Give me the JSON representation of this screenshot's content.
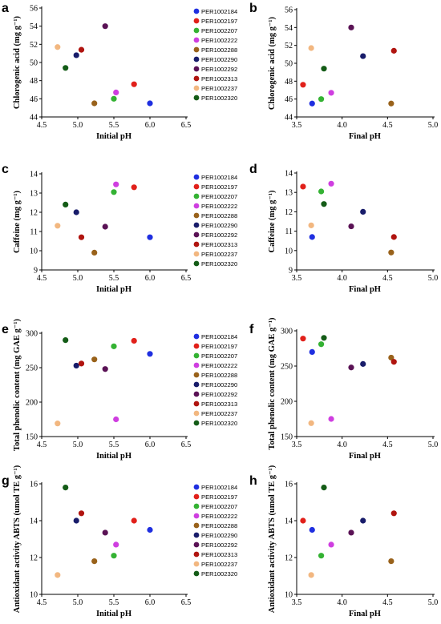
{
  "series_names": [
    "PER1002184",
    "PER1002197",
    "PER1002207",
    "PER1002222",
    "PER1002288",
    "PER1002290",
    "PER1002292",
    "PER1002313",
    "PER1002237",
    "PER1002320"
  ],
  "series_colors": [
    "#1f2fe0",
    "#e1201a",
    "#34b233",
    "#cf3ee0",
    "#99621b",
    "#181c6a",
    "#5a1255",
    "#b0140f",
    "#f2b780",
    "#145c17"
  ],
  "chart_data": [
    {
      "panel": "a",
      "type": "scatter",
      "xlabel": "Initial pH",
      "ylabel": "Chlorogenic acid (mg g⁻¹)",
      "xlim": [
        4.5,
        6.5
      ],
      "ylim": [
        44,
        56
      ],
      "xticks": [
        "4.5",
        "5.0",
        "5.5",
        "6.0",
        "6.5"
      ],
      "yticks": [
        "44",
        "46",
        "48",
        "50",
        "52",
        "54",
        "56"
      ],
      "legend": true,
      "points": [
        [
          6.0,
          45.5
        ],
        [
          5.78,
          47.6
        ],
        [
          5.5,
          46.0
        ],
        [
          5.53,
          46.7
        ],
        [
          5.23,
          45.5
        ],
        [
          4.98,
          50.8
        ],
        [
          5.38,
          54.0
        ],
        [
          5.05,
          51.4
        ],
        [
          4.72,
          51.7
        ],
        [
          4.83,
          49.4
        ]
      ]
    },
    {
      "panel": "b",
      "type": "scatter",
      "xlabel": "Final pH",
      "ylabel": "Chlorogenic acid (mg g⁻¹)",
      "xlim": [
        3.5,
        5.0
      ],
      "ylim": [
        44,
        56
      ],
      "xticks": [
        "3.5",
        "4.0",
        "4.5",
        "5.0"
      ],
      "yticks": [
        "44",
        "46",
        "48",
        "50",
        "52",
        "54",
        "56"
      ],
      "legend": false,
      "points": [
        [
          3.67,
          45.5
        ],
        [
          3.57,
          47.6
        ],
        [
          3.77,
          46.0
        ],
        [
          3.88,
          46.7
        ],
        [
          4.54,
          45.5
        ],
        [
          4.23,
          50.8
        ],
        [
          4.1,
          54.0
        ],
        [
          4.57,
          51.4
        ],
        [
          3.66,
          51.7
        ],
        [
          3.8,
          49.4
        ]
      ]
    },
    {
      "panel": "c",
      "type": "scatter",
      "xlabel": "Initial pH",
      "ylabel": "Caffeine (mg g⁻¹)",
      "xlim": [
        4.5,
        6.5
      ],
      "ylim": [
        9,
        14
      ],
      "xticks": [
        "4.5",
        "5.0",
        "5.5",
        "6.0",
        "6.5"
      ],
      "yticks": [
        "9",
        "10",
        "11",
        "12",
        "13",
        "14"
      ],
      "legend": true,
      "points": [
        [
          6.0,
          10.7
        ],
        [
          5.78,
          13.3
        ],
        [
          5.5,
          13.05
        ],
        [
          5.53,
          13.45
        ],
        [
          5.23,
          9.9
        ],
        [
          4.98,
          12.0
        ],
        [
          5.38,
          11.25
        ],
        [
          5.05,
          10.7
        ],
        [
          4.72,
          11.3
        ],
        [
          4.83,
          12.4
        ]
      ]
    },
    {
      "panel": "d",
      "type": "scatter",
      "xlabel": "Final pH",
      "ylabel": "Caffeine (mg g⁻¹)",
      "xlim": [
        3.5,
        5.0
      ],
      "ylim": [
        9,
        14
      ],
      "xticks": [
        "3.5",
        "4.0",
        "4.5",
        "5.0"
      ],
      "yticks": [
        "9",
        "10",
        "11",
        "12",
        "13",
        "14"
      ],
      "legend": false,
      "points": [
        [
          3.67,
          10.7
        ],
        [
          3.57,
          13.3
        ],
        [
          3.77,
          13.05
        ],
        [
          3.88,
          13.45
        ],
        [
          4.54,
          9.9
        ],
        [
          4.23,
          12.0
        ],
        [
          4.1,
          11.25
        ],
        [
          4.57,
          10.7
        ],
        [
          3.66,
          11.3
        ],
        [
          3.8,
          12.4
        ]
      ]
    },
    {
      "panel": "e",
      "type": "scatter",
      "xlabel": "Initial pH",
      "ylabel": "Total phenolic content (mg GAE g⁻¹)",
      "xlim": [
        4.5,
        6.5
      ],
      "ylim": [
        150,
        300
      ],
      "xticks": [
        "4.5",
        "5.0",
        "5.5",
        "6.0",
        "6.5"
      ],
      "yticks": [
        "150",
        "200",
        "250",
        "300"
      ],
      "legend": true,
      "points": [
        [
          6.0,
          270
        ],
        [
          5.78,
          289
        ],
        [
          5.5,
          281
        ],
        [
          5.53,
          175
        ],
        [
          5.23,
          262
        ],
        [
          4.98,
          253
        ],
        [
          5.38,
          248
        ],
        [
          5.05,
          256
        ],
        [
          4.72,
          169
        ],
        [
          4.83,
          290
        ]
      ]
    },
    {
      "panel": "f",
      "type": "scatter",
      "xlabel": "Final pH",
      "ylabel": "Total phenolic content (mg GAE g⁻¹)",
      "xlim": [
        3.5,
        5.0
      ],
      "ylim": [
        150,
        300
      ],
      "xticks": [
        "3.5",
        "4.0",
        "4.5",
        "5.0"
      ],
      "yticks": [
        "150",
        "200",
        "250",
        "300"
      ],
      "legend": false,
      "points": [
        [
          3.67,
          270
        ],
        [
          3.57,
          289
        ],
        [
          3.77,
          281
        ],
        [
          3.88,
          175
        ],
        [
          4.54,
          262
        ],
        [
          4.23,
          253
        ],
        [
          4.1,
          248
        ],
        [
          4.57,
          256
        ],
        [
          3.66,
          169
        ],
        [
          3.8,
          290
        ]
      ]
    },
    {
      "panel": "g",
      "type": "scatter",
      "xlabel": "Initial pH",
      "ylabel": "Antioxidant activity ABTS (umol TE g⁻¹)",
      "xlim": [
        4.5,
        6.5
      ],
      "ylim": [
        10,
        16
      ],
      "xticks": [
        "4.5",
        "5.0",
        "5.5",
        "6.0",
        "6.5"
      ],
      "yticks": [
        "10",
        "12",
        "14",
        "16"
      ],
      "legend": true,
      "points": [
        [
          6.0,
          13.5
        ],
        [
          5.78,
          14.0
        ],
        [
          5.5,
          12.1
        ],
        [
          5.53,
          12.7
        ],
        [
          5.23,
          11.8
        ],
        [
          4.98,
          14.0
        ],
        [
          5.38,
          13.35
        ],
        [
          5.05,
          14.4
        ],
        [
          4.72,
          11.05
        ],
        [
          4.83,
          15.8
        ]
      ]
    },
    {
      "panel": "h",
      "type": "scatter",
      "xlabel": "Final pH",
      "ylabel": "Antioxidant activity ABTS (umol TE g⁻¹)",
      "xlim": [
        3.5,
        5.0
      ],
      "ylim": [
        10,
        16
      ],
      "xticks": [
        "3.5",
        "4.0",
        "4.5",
        "5.0"
      ],
      "yticks": [
        "10",
        "12",
        "14",
        "16"
      ],
      "legend": false,
      "points": [
        [
          3.67,
          13.5
        ],
        [
          3.57,
          14.0
        ],
        [
          3.77,
          12.1
        ],
        [
          3.88,
          12.7
        ],
        [
          4.54,
          11.8
        ],
        [
          4.23,
          14.0
        ],
        [
          4.1,
          13.35
        ],
        [
          4.57,
          14.4
        ],
        [
          3.66,
          11.05
        ],
        [
          3.8,
          15.8
        ]
      ]
    }
  ]
}
